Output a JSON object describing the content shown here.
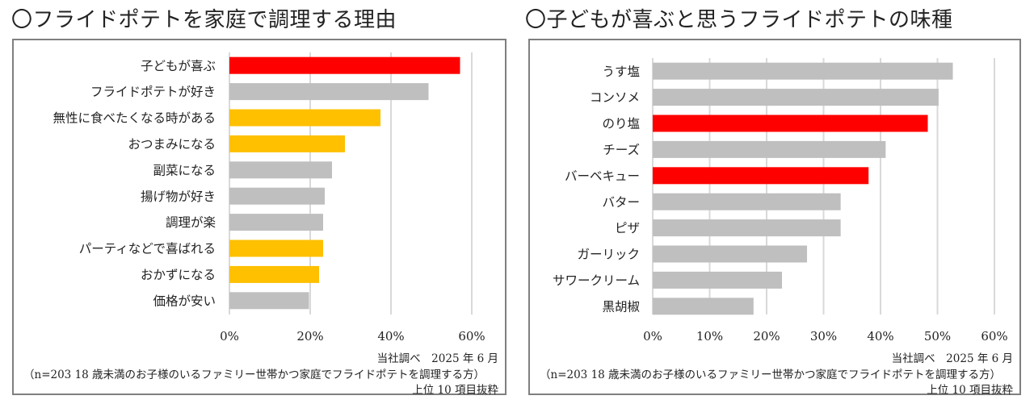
{
  "charts": {
    "left": {
      "title": "〇フライドポテトを家庭で調理する理由",
      "note_source": "当社調べ　2025 年 6 月",
      "note_sample": "（n=203 18 歳未満のお子様のいるファミリー世帯かつ家庭でフライドポテトを調理する方）",
      "note_top": "上位 10 項目抜粋"
    },
    "right": {
      "title": "〇子どもが喜ぶと思うフライドポテトの味種",
      "note_source": "当社調べ　2025 年 6 月",
      "note_sample": "（n=203 18 歳未満のお子様のいるファミリー世帯かつ家庭でフライドポテトを調理する方）",
      "note_top": "上位 10 項目抜粋"
    }
  },
  "colors": {
    "red": "#ff0000",
    "yellow": "#ffc000",
    "gray": "#bfbfbf",
    "grid": "#d9d9d9"
  },
  "chart_data": [
    {
      "type": "bar",
      "orientation": "horizontal",
      "title": "〇フライドポテトを家庭で調理する理由",
      "xlabel": "",
      "ylabel": "",
      "xlim": [
        0,
        60
      ],
      "xticks": [
        0,
        20,
        40,
        60
      ],
      "xtick_labels": [
        "0%",
        "20%",
        "40%",
        "60%"
      ],
      "grid": true,
      "categories": [
        "子どもが喜ぶ",
        "フライドポテトが好き",
        "無性に食べたくなる時がある",
        "おつまみになる",
        "副菜になる",
        "揚げ物が好き",
        "調理が楽",
        "パーティなどで喜ばれる",
        "おかずになる",
        "価格が安い"
      ],
      "values": [
        57.1,
        49.3,
        37.4,
        28.6,
        25.4,
        23.6,
        23.2,
        23.2,
        22.2,
        19.7
      ],
      "bar_colors": [
        "red",
        "gray",
        "yellow",
        "yellow",
        "gray",
        "gray",
        "gray",
        "yellow",
        "yellow",
        "gray"
      ],
      "unit": "%"
    },
    {
      "type": "bar",
      "orientation": "horizontal",
      "title": "〇子どもが喜ぶと思うフライドポテトの味種",
      "xlabel": "",
      "ylabel": "",
      "xlim": [
        0,
        60
      ],
      "xticks": [
        0,
        10,
        20,
        30,
        40,
        50,
        60
      ],
      "xtick_labels": [
        "0%",
        "10%",
        "20%",
        "30%",
        "40%",
        "50%",
        "60%"
      ],
      "grid": true,
      "categories": [
        "うす塩",
        "コンソメ",
        "のり塩",
        "チーズ",
        "バーベキュー",
        "バター",
        "ピザ",
        "ガーリック",
        "サワークリーム",
        "黒胡椒"
      ],
      "values": [
        52.7,
        50.2,
        48.3,
        40.9,
        37.9,
        33.0,
        33.0,
        27.1,
        22.7,
        17.7
      ],
      "bar_colors": [
        "gray",
        "gray",
        "red",
        "gray",
        "red",
        "gray",
        "gray",
        "gray",
        "gray",
        "gray"
      ],
      "unit": "%"
    }
  ]
}
